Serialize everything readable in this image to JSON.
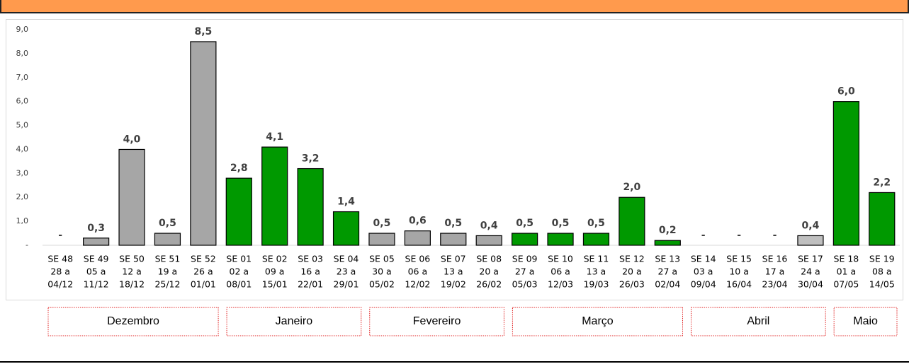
{
  "chart_data": {
    "type": "bar",
    "categories": [
      [
        "SE 48",
        "28 a",
        "04/12"
      ],
      [
        "SE 49",
        "05 a",
        "11/12"
      ],
      [
        "SE 50",
        "12 a",
        "18/12"
      ],
      [
        "SE 51",
        "19 a",
        "25/12"
      ],
      [
        "SE 52",
        "26 a",
        "01/01"
      ],
      [
        "SE 01",
        "02 a",
        "08/01"
      ],
      [
        "SE 02",
        "09 a",
        "15/01"
      ],
      [
        "SE 03",
        "16 a",
        "22/01"
      ],
      [
        "SE 04",
        "23 a",
        "29/01"
      ],
      [
        "SE 05",
        "30 a",
        "05/02"
      ],
      [
        "SE 06",
        "06 a",
        "12/02"
      ],
      [
        "SE 07",
        "13 a",
        "19/02"
      ],
      [
        "SE 08",
        "20 a",
        "26/02"
      ],
      [
        "SE 09",
        "27 a",
        "05/03"
      ],
      [
        "SE 10",
        "06 a",
        "12/03"
      ],
      [
        "SE 11",
        "13 a",
        "19/03"
      ],
      [
        "SE 12",
        "20 a",
        "26/03"
      ],
      [
        "SE 13",
        "27 a",
        "02/04"
      ],
      [
        "SE 14",
        "03 a",
        "09/04"
      ],
      [
        "SE 15",
        "10 a",
        "16/04"
      ],
      [
        "SE 16",
        "17 a",
        "23/04"
      ],
      [
        "SE 17",
        "24 a",
        "30/04"
      ],
      [
        "SE 18",
        "01 a",
        "07/05"
      ],
      [
        "SE 19",
        "08 a",
        "14/05"
      ]
    ],
    "values": [
      0,
      0.3,
      4.0,
      0.5,
      8.5,
      2.8,
      4.1,
      3.2,
      1.4,
      0.5,
      0.6,
      0.5,
      0.4,
      0.5,
      0.5,
      0.5,
      2.0,
      0.2,
      0,
      0,
      0,
      0.4,
      6.0,
      2.2
    ],
    "value_labels": [
      "-",
      "0,3",
      "4,0",
      "0,5",
      "8,5",
      "2,8",
      "4,1",
      "3,2",
      "1,4",
      "0,5",
      "0,6",
      "0,5",
      "0,4",
      "0,5",
      "0,5",
      "0,5",
      "2,0",
      "0,2",
      "-",
      "-",
      "-",
      "0,4",
      "6,0",
      "2,2"
    ],
    "colors": [
      "#a6a6a6",
      "#a6a6a6",
      "#a6a6a6",
      "#a6a6a6",
      "#a6a6a6",
      "#009900",
      "#009900",
      "#009900",
      "#009900",
      "#a6a6a6",
      "#a6a6a6",
      "#a6a6a6",
      "#a6a6a6",
      "#009900",
      "#009900",
      "#009900",
      "#009900",
      "#009900",
      "#bfbfbf",
      "#bfbfbf",
      "#bfbfbf",
      "#bfbfbf",
      "#009900",
      "#009900"
    ],
    "ylim": [
      0,
      9
    ],
    "yticks": [
      {
        "value": 0,
        "label": "-"
      },
      {
        "value": 1,
        "label": "1,0"
      },
      {
        "value": 2,
        "label": "2,0"
      },
      {
        "value": 3,
        "label": "3,0"
      },
      {
        "value": 4,
        "label": "4,0"
      },
      {
        "value": 5,
        "label": "5,0"
      },
      {
        "value": 6,
        "label": "6,0"
      },
      {
        "value": 7,
        "label": "7,0"
      },
      {
        "value": 8,
        "label": "8,0"
      },
      {
        "value": 9,
        "label": "9,0"
      }
    ],
    "grid": false,
    "months": [
      "Dezembro",
      "Janeiro",
      "Fevereiro",
      "Março",
      "Abril",
      "Maio"
    ]
  }
}
